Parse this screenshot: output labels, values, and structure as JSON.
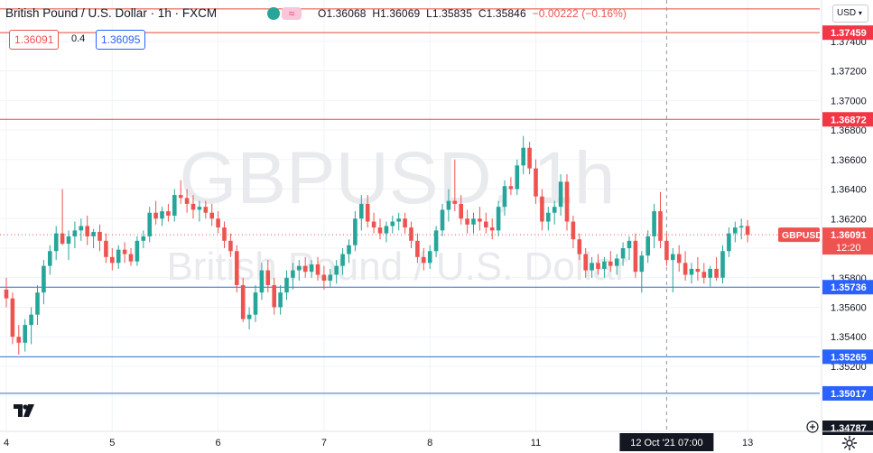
{
  "header": {
    "symbol_title": "British Pound / U.S. Dollar · 1h · FXCM",
    "ohlc": {
      "o_label": "O",
      "o_value": "1.36068",
      "h_label": "H",
      "h_value": "1.36069",
      "l_label": "L",
      "l_value": "1.35835",
      "c_label": "C",
      "c_value": "1.35846",
      "change": "−0.00222 (−0.16%)"
    },
    "indicator_icon": "≈",
    "currency": "USD"
  },
  "trade": {
    "sell_price": "1.36091",
    "spread": "0.4",
    "buy_price": "1.36095"
  },
  "watermark": {
    "symbol": "GBPUSD, 1h",
    "description": "British Pound / U.S. Dollar"
  },
  "colors": {
    "up": "#26a69a",
    "down": "#ef5350",
    "resistance_line": "#e04b3a",
    "support_line": "#2f6fbf",
    "resistance_label_bg": "#f23645",
    "support_label_bg": "#2962ff",
    "grid": "#f0f3fa"
  },
  "chart_data": {
    "type": "candlestick",
    "symbol": "GBPUSD",
    "interval": "1h",
    "ylim": [
      1.3476,
      1.3768
    ],
    "y_ticks": [
      "1.37400",
      "1.37200",
      "1.37000",
      "1.36800",
      "1.36600",
      "1.36400",
      "1.36200",
      "1.36000",
      "1.35800",
      "1.35600",
      "1.35400",
      "1.35200",
      "1.35000"
    ],
    "x_ticks": [
      {
        "label": "4",
        "index": 0
      },
      {
        "label": "5",
        "index": 17
      },
      {
        "label": "6",
        "index": 34
      },
      {
        "label": "7",
        "index": 51
      },
      {
        "label": "8",
        "index": 68
      },
      {
        "label": "11",
        "index": 85
      },
      {
        "label": "12 Oct '21",
        "index": 102
      },
      {
        "label": "13",
        "index": 119
      }
    ],
    "horizontal_levels": [
      {
        "price": 1.37459,
        "label": "1.37459",
        "kind": "resistance"
      },
      {
        "price": 1.36872,
        "label": "1.36872",
        "kind": "resistance"
      },
      {
        "price": 1.35736,
        "label": "1.35736",
        "kind": "support"
      },
      {
        "price": 1.35265,
        "label": "1.35265",
        "kind": "support"
      },
      {
        "price": 1.35017,
        "label": "1.35017",
        "kind": "support"
      }
    ],
    "top_level_price": 1.3762,
    "current_price": {
      "price": 1.36091,
      "label": "1.36091",
      "countdown": "12:20",
      "tag": "GBPUSD"
    },
    "bottom_label": "1.34787",
    "crosshair": {
      "index": 106,
      "price": 1.35736,
      "time_label": "12 Oct '21  07:00"
    },
    "candles": [
      [
        1.3572,
        1.358,
        1.356,
        1.3566
      ],
      [
        1.3566,
        1.357,
        1.3535,
        1.354
      ],
      [
        1.354,
        1.3548,
        1.3528,
        1.3536
      ],
      [
        1.3536,
        1.3552,
        1.353,
        1.3548
      ],
      [
        1.3548,
        1.356,
        1.3535,
        1.3555
      ],
      [
        1.3555,
        1.3575,
        1.3548,
        1.357
      ],
      [
        1.357,
        1.3592,
        1.3562,
        1.3588
      ],
      [
        1.3588,
        1.3602,
        1.3582,
        1.3598
      ],
      [
        1.3598,
        1.3615,
        1.3592,
        1.361
      ],
      [
        1.361,
        1.364,
        1.3602,
        1.3603
      ],
      [
        1.3603,
        1.3612,
        1.3592,
        1.3608
      ],
      [
        1.3608,
        1.3618,
        1.36,
        1.3612
      ],
      [
        1.3612,
        1.362,
        1.3605,
        1.3615
      ],
      [
        1.3615,
        1.3622,
        1.3602,
        1.3608
      ],
      [
        1.3608,
        1.3613,
        1.36,
        1.3611
      ],
      [
        1.3611,
        1.3616,
        1.3598,
        1.3605
      ],
      [
        1.3605,
        1.361,
        1.359,
        1.3594
      ],
      [
        1.3594,
        1.36,
        1.3585,
        1.359
      ],
      [
        1.359,
        1.3602,
        1.3586,
        1.3599
      ],
      [
        1.3599,
        1.3604,
        1.359,
        1.3596
      ],
      [
        1.3596,
        1.36,
        1.3588,
        1.3591
      ],
      [
        1.3591,
        1.3608,
        1.3588,
        1.3605
      ],
      [
        1.3605,
        1.3612,
        1.36,
        1.3608
      ],
      [
        1.3608,
        1.3628,
        1.3604,
        1.3624
      ],
      [
        1.3624,
        1.3632,
        1.3616,
        1.362
      ],
      [
        1.362,
        1.3628,
        1.3615,
        1.3625
      ],
      [
        1.3625,
        1.363,
        1.3618,
        1.3622
      ],
      [
        1.3622,
        1.364,
        1.3618,
        1.3636
      ],
      [
        1.3636,
        1.3646,
        1.363,
        1.3634
      ],
      [
        1.3634,
        1.364,
        1.3624,
        1.363
      ],
      [
        1.363,
        1.3636,
        1.362,
        1.3626
      ],
      [
        1.3626,
        1.3632,
        1.3618,
        1.3628
      ],
      [
        1.3628,
        1.3632,
        1.362,
        1.3624
      ],
      [
        1.3624,
        1.363,
        1.3615,
        1.362
      ],
      [
        1.362,
        1.3625,
        1.361,
        1.3614
      ],
      [
        1.3614,
        1.3618,
        1.36,
        1.3605
      ],
      [
        1.3605,
        1.361,
        1.3594,
        1.3598
      ],
      [
        1.3598,
        1.3602,
        1.357,
        1.3575
      ],
      [
        1.3575,
        1.358,
        1.355,
        1.3552
      ],
      [
        1.3552,
        1.356,
        1.3545,
        1.3555
      ],
      [
        1.3555,
        1.3575,
        1.355,
        1.357
      ],
      [
        1.357,
        1.359,
        1.3565,
        1.3585
      ],
      [
        1.3585,
        1.3592,
        1.357,
        1.3575
      ],
      [
        1.3575,
        1.358,
        1.3555,
        1.356
      ],
      [
        1.356,
        1.3575,
        1.3555,
        1.357
      ],
      [
        1.357,
        1.3585,
        1.3565,
        1.358
      ],
      [
        1.358,
        1.359,
        1.3572,
        1.3585
      ],
      [
        1.3585,
        1.3592,
        1.3578,
        1.3588
      ],
      [
        1.3588,
        1.3594,
        1.358,
        1.3584
      ],
      [
        1.3584,
        1.3592,
        1.358,
        1.3589
      ],
      [
        1.3589,
        1.3594,
        1.3578,
        1.3582
      ],
      [
        1.3582,
        1.3588,
        1.3572,
        1.3578
      ],
      [
        1.3578,
        1.3586,
        1.3574,
        1.3582
      ],
      [
        1.3582,
        1.3592,
        1.3576,
        1.3588
      ],
      [
        1.3588,
        1.36,
        1.3582,
        1.3596
      ],
      [
        1.3596,
        1.3606,
        1.359,
        1.3602
      ],
      [
        1.3602,
        1.3625,
        1.3598,
        1.362
      ],
      [
        1.362,
        1.3636,
        1.3612,
        1.363
      ],
      [
        1.363,
        1.3636,
        1.3614,
        1.3618
      ],
      [
        1.3618,
        1.3624,
        1.361,
        1.3614
      ],
      [
        1.3614,
        1.362,
        1.3606,
        1.361
      ],
      [
        1.361,
        1.3618,
        1.3604,
        1.3615
      ],
      [
        1.3615,
        1.3622,
        1.361,
        1.3618
      ],
      [
        1.3618,
        1.3624,
        1.3612,
        1.362
      ],
      [
        1.362,
        1.3624,
        1.361,
        1.3614
      ],
      [
        1.3614,
        1.3618,
        1.36,
        1.3605
      ],
      [
        1.3605,
        1.361,
        1.359,
        1.3594
      ],
      [
        1.3594,
        1.36,
        1.3585,
        1.359
      ],
      [
        1.359,
        1.3602,
        1.3586,
        1.3598
      ],
      [
        1.3598,
        1.3615,
        1.3594,
        1.3612
      ],
      [
        1.3612,
        1.363,
        1.3608,
        1.3626
      ],
      [
        1.3626,
        1.364,
        1.3618,
        1.3632
      ],
      [
        1.3632,
        1.366,
        1.3625,
        1.363
      ],
      [
        1.363,
        1.3636,
        1.3616,
        1.362
      ],
      [
        1.362,
        1.3626,
        1.361,
        1.3616
      ],
      [
        1.3616,
        1.3624,
        1.361,
        1.362
      ],
      [
        1.362,
        1.3628,
        1.3612,
        1.3618
      ],
      [
        1.3618,
        1.3624,
        1.361,
        1.3614
      ],
      [
        1.3614,
        1.362,
        1.3606,
        1.3612
      ],
      [
        1.3612,
        1.3632,
        1.3608,
        1.3628
      ],
      [
        1.3628,
        1.3646,
        1.3622,
        1.3642
      ],
      [
        1.3642,
        1.3648,
        1.3636,
        1.364
      ],
      [
        1.364,
        1.366,
        1.3636,
        1.3656
      ],
      [
        1.3656,
        1.3676,
        1.365,
        1.3668
      ],
      [
        1.3668,
        1.3672,
        1.365,
        1.3654
      ],
      [
        1.3654,
        1.366,
        1.363,
        1.3635
      ],
      [
        1.3635,
        1.364,
        1.3612,
        1.3618
      ],
      [
        1.3618,
        1.3628,
        1.3612,
        1.3624
      ],
      [
        1.3624,
        1.3632,
        1.3616,
        1.3628
      ],
      [
        1.3628,
        1.365,
        1.3622,
        1.3645
      ],
      [
        1.3645,
        1.365,
        1.3612,
        1.3618
      ],
      [
        1.3618,
        1.3622,
        1.36,
        1.3606
      ],
      [
        1.3606,
        1.361,
        1.3592,
        1.3596
      ],
      [
        1.3596,
        1.36,
        1.358,
        1.3585
      ],
      [
        1.3585,
        1.3594,
        1.358,
        1.359
      ],
      [
        1.359,
        1.3596,
        1.3582,
        1.3586
      ],
      [
        1.3586,
        1.3594,
        1.358,
        1.3591
      ],
      [
        1.3591,
        1.3598,
        1.3584,
        1.3588
      ],
      [
        1.3588,
        1.3596,
        1.3582,
        1.3593
      ],
      [
        1.3593,
        1.3604,
        1.3588,
        1.36
      ],
      [
        1.36,
        1.3608,
        1.3592,
        1.3605
      ],
      [
        1.3605,
        1.361,
        1.358,
        1.3584
      ],
      [
        1.3584,
        1.3598,
        1.357,
        1.3595
      ],
      [
        1.3595,
        1.3612,
        1.359,
        1.3608
      ],
      [
        1.3608,
        1.363,
        1.36,
        1.3625
      ],
      [
        1.3625,
        1.3638,
        1.36,
        1.3605
      ],
      [
        1.3605,
        1.361,
        1.3588,
        1.3592
      ],
      [
        1.3592,
        1.36,
        1.357,
        1.3596
      ],
      [
        1.3596,
        1.3602,
        1.3584,
        1.359
      ],
      [
        1.359,
        1.3598,
        1.3578,
        1.3582
      ],
      [
        1.3582,
        1.359,
        1.3576,
        1.3586
      ],
      [
        1.3586,
        1.3594,
        1.3578,
        1.3584
      ],
      [
        1.3584,
        1.359,
        1.3576,
        1.358
      ],
      [
        1.358,
        1.3588,
        1.3574,
        1.3586
      ],
      [
        1.3586,
        1.3594,
        1.3578,
        1.358
      ],
      [
        1.358,
        1.3602,
        1.3576,
        1.3598
      ],
      [
        1.3598,
        1.3614,
        1.3594,
        1.361
      ],
      [
        1.361,
        1.3618,
        1.3604,
        1.3614
      ],
      [
        1.3614,
        1.362,
        1.3606,
        1.3615
      ],
      [
        1.3615,
        1.3619,
        1.3604,
        1.3609
      ]
    ]
  }
}
